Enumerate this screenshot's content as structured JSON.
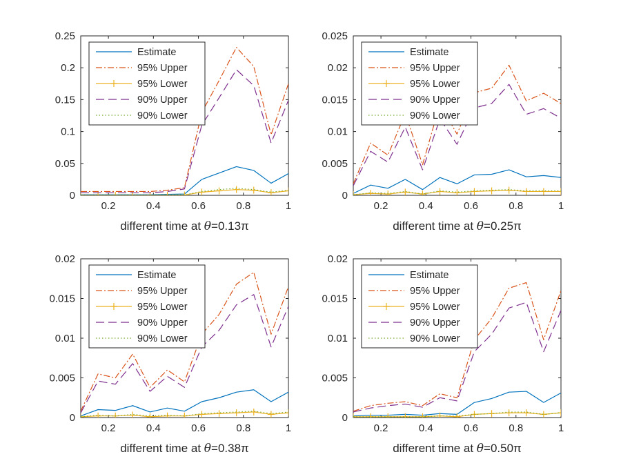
{
  "series_styles": [
    {
      "key": "est",
      "color": "#0072BD",
      "dash": "",
      "marker": "none"
    },
    {
      "key": "up95",
      "color": "#D95319",
      "dash": "9,3,2,3",
      "marker": "none"
    },
    {
      "key": "low95",
      "color": "#EDB120",
      "dash": "",
      "marker": "plus"
    },
    {
      "key": "up90",
      "color": "#7E2F8E",
      "dash": "12,6",
      "marker": "none"
    },
    {
      "key": "low90",
      "color": "#77AC30",
      "dash": "1.5,3",
      "marker": "none"
    }
  ],
  "chart_data": [
    {
      "type": "line",
      "xlabel_prefix": "different time at ",
      "xlabel_theta": "θ",
      "xlabel_suffix": "=0.13π",
      "xlim": [
        0.077,
        1.0
      ],
      "ylim": [
        0,
        0.25
      ],
      "xticks": [
        0.2,
        0.4,
        0.6,
        0.8,
        1
      ],
      "xtick_labels": [
        "0.2",
        "0.4",
        "0.6",
        "0.8",
        "1"
      ],
      "yticks": [
        0,
        0.05,
        0.1,
        0.15,
        0.2,
        0.25
      ],
      "ytick_labels": [
        "0",
        "0.05",
        "0.1",
        "0.15",
        "0.2",
        "0.25"
      ],
      "legend_position": "top-left",
      "x": [
        0.077,
        0.154,
        0.231,
        0.308,
        0.385,
        0.462,
        0.538,
        0.615,
        0.692,
        0.769,
        0.846,
        0.923,
        1.0
      ],
      "series": [
        {
          "name": "Estimate",
          "values": [
            0.001,
            0.001,
            0.001,
            0.001,
            0.001,
            0.0015,
            0.002,
            0.025,
            0.035,
            0.045,
            0.039,
            0.019,
            0.034
          ]
        },
        {
          "name": "95% Upper",
          "values": [
            0.006,
            0.006,
            0.006,
            0.006,
            0.006,
            0.008,
            0.012,
            0.13,
            0.18,
            0.232,
            0.202,
            0.095,
            0.175
          ]
        },
        {
          "name": "95% Lower",
          "values": [
            0.0002,
            0.0002,
            0.0002,
            0.0002,
            0.0002,
            0.0003,
            0.0005,
            0.005,
            0.007,
            0.009,
            0.008,
            0.004,
            0.007
          ]
        },
        {
          "name": "90% Upper",
          "values": [
            0.004,
            0.004,
            0.004,
            0.004,
            0.004,
            0.006,
            0.01,
            0.11,
            0.153,
            0.197,
            0.172,
            0.082,
            0.149
          ]
        },
        {
          "name": "90% Lower",
          "values": [
            0.0003,
            0.0003,
            0.0003,
            0.0003,
            0.0003,
            0.0004,
            0.0006,
            0.006,
            0.009,
            0.011,
            0.009,
            0.005,
            0.008
          ]
        }
      ]
    },
    {
      "type": "line",
      "xlabel_prefix": "different time at ",
      "xlabel_theta": "θ",
      "xlabel_suffix": "=0.25π",
      "xlim": [
        0.077,
        1.0
      ],
      "ylim": [
        0,
        0.025
      ],
      "xticks": [
        0.2,
        0.4,
        0.6,
        0.8,
        1
      ],
      "xtick_labels": [
        "0.2",
        "0.4",
        "0.6",
        "0.8",
        "1"
      ],
      "yticks": [
        0,
        0.005,
        0.01,
        0.015,
        0.02,
        0.025
      ],
      "ytick_labels": [
        "0",
        "0.005",
        "0.01",
        "0.015",
        "0.02",
        "0.025"
      ],
      "legend_position": "top-left",
      "x": [
        0.077,
        0.154,
        0.231,
        0.308,
        0.385,
        0.462,
        0.538,
        0.615,
        0.692,
        0.769,
        0.846,
        0.923,
        1.0
      ],
      "series": [
        {
          "name": "Estimate",
          "values": [
            0.0003,
            0.0016,
            0.0011,
            0.0025,
            0.0009,
            0.0028,
            0.0018,
            0.0032,
            0.0033,
            0.004,
            0.0029,
            0.0031,
            0.0028
          ]
        },
        {
          "name": "95% Upper",
          "values": [
            0.0018,
            0.0082,
            0.0063,
            0.0128,
            0.0048,
            0.0143,
            0.0096,
            0.0161,
            0.0168,
            0.0204,
            0.0148,
            0.016,
            0.0144
          ]
        },
        {
          "name": "95% Lower",
          "values": [
            0.0001,
            0.0003,
            0.0002,
            0.0005,
            0.0002,
            0.0006,
            0.0004,
            0.0006,
            0.0007,
            0.0008,
            0.0006,
            0.0006,
            0.0006
          ]
        },
        {
          "name": "90% Upper",
          "values": [
            0.0015,
            0.0069,
            0.0052,
            0.0107,
            0.004,
            0.012,
            0.008,
            0.0137,
            0.0144,
            0.0174,
            0.0127,
            0.0136,
            0.0121
          ]
        },
        {
          "name": "90% Lower",
          "values": [
            0.0001,
            0.0004,
            0.0003,
            0.0006,
            0.0002,
            0.0007,
            0.0005,
            0.0007,
            0.0008,
            0.0009,
            0.0007,
            0.0007,
            0.0007
          ]
        }
      ]
    },
    {
      "type": "line",
      "xlabel_prefix": "different time at ",
      "xlabel_theta": "θ",
      "xlabel_suffix": "=0.38π",
      "xlim": [
        0.077,
        1.0
      ],
      "ylim": [
        0,
        0.02
      ],
      "xticks": [
        0.2,
        0.4,
        0.6,
        0.8,
        1
      ],
      "xtick_labels": [
        "0.2",
        "0.4",
        "0.6",
        "0.8",
        "1"
      ],
      "yticks": [
        0,
        0.005,
        0.01,
        0.015,
        0.02
      ],
      "ytick_labels": [
        "0",
        "0.005",
        "0.01",
        "0.015",
        "0.02"
      ],
      "legend_position": "top-left",
      "x": [
        0.077,
        0.154,
        0.231,
        0.308,
        0.385,
        0.462,
        0.538,
        0.615,
        0.692,
        0.769,
        0.846,
        0.923,
        1.0
      ],
      "series": [
        {
          "name": "Estimate",
          "values": [
            0.0002,
            0.001,
            0.0009,
            0.0015,
            0.0007,
            0.0012,
            0.0008,
            0.002,
            0.0025,
            0.0032,
            0.0035,
            0.002,
            0.0032
          ]
        },
        {
          "name": "95% Upper",
          "values": [
            0.0008,
            0.0055,
            0.005,
            0.008,
            0.0038,
            0.006,
            0.0045,
            0.0105,
            0.013,
            0.0168,
            0.0183,
            0.0105,
            0.0165
          ]
        },
        {
          "name": "95% Lower",
          "values": [
            0.0001,
            0.0002,
            0.0002,
            0.0003,
            0.0001,
            0.0002,
            0.0002,
            0.0004,
            0.0005,
            0.0006,
            0.0007,
            0.0004,
            0.0006
          ]
        },
        {
          "name": "90% Upper",
          "values": [
            0.0006,
            0.0046,
            0.0042,
            0.0068,
            0.0033,
            0.0052,
            0.0038,
            0.0089,
            0.011,
            0.0142,
            0.0155,
            0.0089,
            0.014
          ]
        },
        {
          "name": "90% Lower",
          "values": [
            0.0001,
            0.0003,
            0.0002,
            0.0004,
            0.0002,
            0.0003,
            0.0002,
            0.0005,
            0.0006,
            0.0007,
            0.0008,
            0.0005,
            0.0007
          ]
        }
      ]
    },
    {
      "type": "line",
      "xlabel_prefix": "different time at ",
      "xlabel_theta": "θ",
      "xlabel_suffix": "=0.50π",
      "xlim": [
        0.077,
        1.0
      ],
      "ylim": [
        0,
        0.02
      ],
      "xticks": [
        0.2,
        0.4,
        0.6,
        0.8,
        1
      ],
      "xtick_labels": [
        "0.2",
        "0.4",
        "0.6",
        "0.8",
        "1"
      ],
      "yticks": [
        0,
        0.005,
        0.01,
        0.015,
        0.02
      ],
      "ytick_labels": [
        "0",
        "0.005",
        "0.01",
        "0.015",
        "0.02"
      ],
      "legend_position": "top-left",
      "x": [
        0.077,
        0.154,
        0.231,
        0.308,
        0.385,
        0.462,
        0.538,
        0.615,
        0.692,
        0.769,
        0.846,
        0.923,
        1.0
      ],
      "series": [
        {
          "name": "Estimate",
          "values": [
            0.0002,
            0.0003,
            0.0003,
            0.0004,
            0.0003,
            0.0005,
            0.0004,
            0.0019,
            0.0024,
            0.0032,
            0.0033,
            0.0019,
            0.0031
          ]
        },
        {
          "name": "95% Upper",
          "values": [
            0.0008,
            0.0015,
            0.0018,
            0.002,
            0.0015,
            0.003,
            0.0025,
            0.0098,
            0.0125,
            0.0163,
            0.017,
            0.0098,
            0.016
          ]
        },
        {
          "name": "95% Lower",
          "values": [
            0.0001,
            0.0001,
            0.0001,
            0.0001,
            0.0001,
            0.0002,
            0.0001,
            0.0004,
            0.0005,
            0.0006,
            0.0006,
            0.0004,
            0.0006
          ]
        },
        {
          "name": "90% Upper",
          "values": [
            0.0007,
            0.0012,
            0.0015,
            0.0017,
            0.0013,
            0.0025,
            0.0021,
            0.0083,
            0.0105,
            0.0138,
            0.0145,
            0.0083,
            0.0135
          ]
        },
        {
          "name": "90% Lower",
          "values": [
            0.0001,
            0.0001,
            0.0001,
            0.0001,
            0.0001,
            0.0002,
            0.0002,
            0.0004,
            0.0005,
            0.0007,
            0.0007,
            0.0004,
            0.0006
          ]
        }
      ]
    }
  ]
}
